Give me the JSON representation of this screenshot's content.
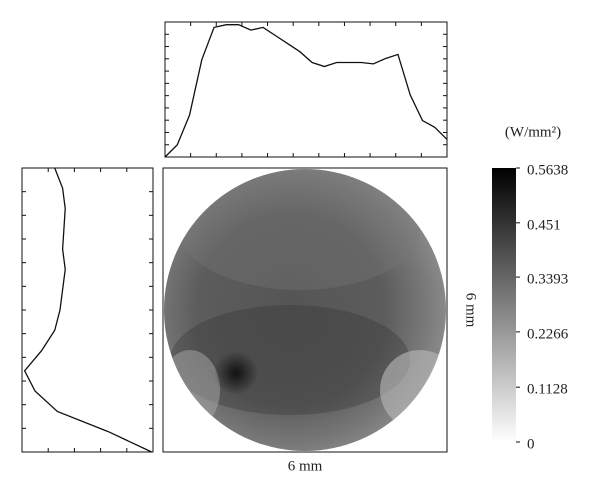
{
  "chart_data": {
    "type": "beam-profile",
    "unit_label": "(W/mm²)",
    "x_label": "6 mm",
    "y_label": "6 mm",
    "colorbar_lim": [
      0,
      0.5638
    ],
    "colorbar_ticks": [
      0,
      0.1128,
      0.2266,
      0.3393,
      0.451,
      0.5638
    ],
    "top_profile": [
      0,
      0.09,
      0.31,
      0.72,
      0.96,
      0.98,
      0.98,
      0.94,
      0.96,
      0.9,
      0.84,
      0.78,
      0.7,
      0.67,
      0.7,
      0.7,
      0.7,
      0.69,
      0.73,
      0.76,
      0.46,
      0.27,
      0.22,
      0.13
    ],
    "left_profile": [
      0.25,
      0.31,
      0.33,
      0.32,
      0.31,
      0.33,
      0.31,
      0.29,
      0.25,
      0.15,
      0.02,
      0.1,
      0.27,
      0.66,
      0.99
    ]
  }
}
